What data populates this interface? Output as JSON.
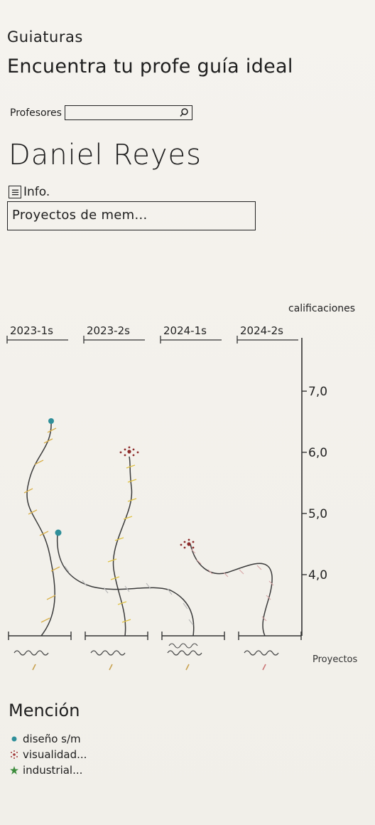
{
  "app": {
    "name": "Guiaturas",
    "tagline": "Encuentra tu profe guía ideal"
  },
  "search": {
    "label": "Profesores",
    "value": "",
    "icon": "search-icon"
  },
  "professor": {
    "name": "Daniel Reyes"
  },
  "info": {
    "menu_icon": "menu-icon",
    "label": "Info.",
    "content": "Proyectos de mem..."
  },
  "chart_data": {
    "type": "line",
    "ylabel": "calificaciones",
    "xlabel": "Proyectos",
    "categories": [
      "2023-1s",
      "2023-2s",
      "2024-1s",
      "2024-2s"
    ],
    "y_ticks": [
      "7,0",
      "6,0",
      "5,0",
      "4,0"
    ],
    "ylim": [
      3.0,
      7.0
    ],
    "series": [
      {
        "mention": "diseño s/m",
        "semester_index": 0,
        "value": 6.6,
        "color": "#2f8f9a"
      },
      {
        "mention": "diseño s/m",
        "semester_index": 0,
        "value": 4.7,
        "color": "#2f8f9a"
      },
      {
        "mention": "visualidad...",
        "semester_index": 1,
        "value": 6.0,
        "color": "#8c2a2a"
      },
      {
        "mention": "visualidad...",
        "semester_index": 3,
        "value": 4.5,
        "color": "#8c2a2a"
      }
    ]
  },
  "legend": {
    "title": "Mención",
    "items": [
      {
        "label": "diseño s/m",
        "icon": "dot-icon",
        "color": "#2f8f9a"
      },
      {
        "label": "visualidad...",
        "icon": "dotted-cluster-icon",
        "color": "#a33a3a"
      },
      {
        "label": "industrial...",
        "icon": "star-icon",
        "color": "#3c8c3c"
      }
    ]
  }
}
